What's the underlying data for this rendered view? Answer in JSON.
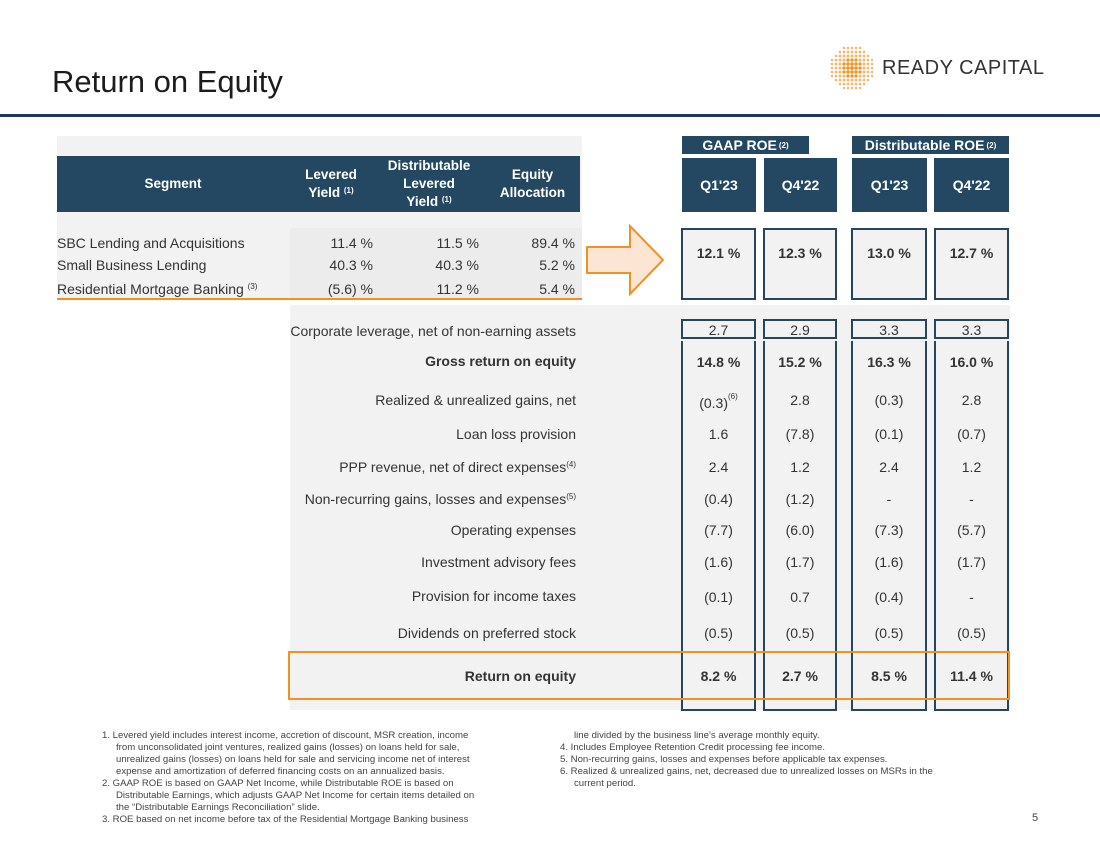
{
  "title": "Return on Equity",
  "logo": {
    "text": "READY CAPITAL",
    "mark": "dotted-globe-mark"
  },
  "segment_table": {
    "headers": {
      "segment": "Segment",
      "levered_yield": [
        "Levered",
        "Yield"
      ],
      "levered_yield_sup": "(1)",
      "distributable_levered_yield": [
        "Distributable",
        "Levered",
        "Yield"
      ],
      "distributable_levered_yield_sup": "(1)",
      "equity_allocation": [
        "Equity",
        "Allocation"
      ]
    },
    "rows": [
      {
        "name": "SBC Lending and Acquisitions",
        "sup": "",
        "levered_yield": "11.4 %",
        "distributable_levered_yield": "11.5 %",
        "equity_allocation": "89.4 %"
      },
      {
        "name": "Small Business Lending",
        "sup": "",
        "levered_yield": "40.3 %",
        "distributable_levered_yield": "40.3 %",
        "equity_allocation": "5.2 %"
      },
      {
        "name": "Residential Mortgage Banking",
        "sup": "(3)",
        "levered_yield": "(5.6) %",
        "distributable_levered_yield": "11.2 %",
        "equity_allocation": "5.4 %"
      }
    ]
  },
  "roe_table": {
    "groups": [
      {
        "label": "GAAP ROE",
        "sup": "(2)",
        "periods": [
          "Q1'23",
          "Q4'22"
        ]
      },
      {
        "label": "Distributable ROE",
        "sup": "(2)",
        "periods": [
          "Q1'23",
          "Q4'22"
        ]
      }
    ],
    "segment_roe": [
      "12.1  %",
      "12.3  %",
      "13.0  %",
      "12.7  %"
    ],
    "rows": [
      {
        "label": "Corporate leverage, net of non-earning assets",
        "sup": "",
        "bold": false,
        "values": [
          "2.7",
          "2.9",
          "3.3",
          "3.3"
        ]
      },
      {
        "label": "Gross return on equity",
        "sup": "",
        "bold": true,
        "values": [
          "14.8 %",
          "15.2 %",
          "16.3 %",
          "16.0 %"
        ]
      },
      {
        "label": "Realized & unrealized gains, net",
        "sup": "",
        "bold": false,
        "values": [
          "(0.3)",
          "2.8",
          "(0.3)",
          "2.8"
        ],
        "value_sups": [
          "(6)",
          "",
          "",
          ""
        ]
      },
      {
        "label": "Loan loss provision",
        "sup": "",
        "bold": false,
        "values": [
          "1.6",
          "(7.8)",
          "(0.1)",
          "(0.7)"
        ]
      },
      {
        "label": "PPP revenue, net of direct expenses",
        "sup": "(4)",
        "bold": false,
        "values": [
          "2.4",
          "1.2",
          "2.4",
          "1.2"
        ]
      },
      {
        "label": "Non-recurring gains, losses and expenses",
        "sup": "(5)",
        "bold": false,
        "values": [
          "(0.4)",
          "(1.2)",
          "-",
          "-"
        ]
      },
      {
        "label": "Operating expenses",
        "sup": "",
        "bold": false,
        "values": [
          "(7.7)",
          "(6.0)",
          "(7.3)",
          "(5.7)"
        ]
      },
      {
        "label": "Investment advisory fees",
        "sup": "",
        "bold": false,
        "values": [
          "(1.6)",
          "(1.7)",
          "(1.6)",
          "(1.7)"
        ]
      },
      {
        "label": "Provision for income taxes",
        "sup": "",
        "bold": false,
        "values": [
          "(0.1)",
          "0.7",
          "(0.4)",
          "-"
        ]
      },
      {
        "label": "Dividends on preferred stock",
        "sup": "",
        "bold": false,
        "values": [
          "(0.5)",
          "(0.5)",
          "(0.5)",
          "(0.5)"
        ]
      },
      {
        "label": "Return on equity",
        "sup": "",
        "bold": true,
        "values": [
          "8.2 %",
          "2.7 %",
          "8.5 %",
          "11.4 %"
        ]
      }
    ]
  },
  "footnotes_left": [
    {
      "text": "1. Levered yield includes interest income, accretion of discount, MSR creation, income",
      "indent": false
    },
    {
      "text": "from unconsolidated joint ventures, realized gains (losses) on loans held for sale,",
      "indent": true
    },
    {
      "text": "unrealized gains (losses) on loans held for sale and servicing income net of interest",
      "indent": true
    },
    {
      "text": "expense and amortization of deferred financing costs on an annualized basis.",
      "indent": true
    },
    {
      "text": "2. GAAP ROE is based on GAAP Net Income, while Distributable ROE is based on",
      "indent": false
    },
    {
      "text": "Distributable Earnings, which adjusts GAAP Net Income for certain items detailed on",
      "indent": true
    },
    {
      "text": "the “Distributable Earnings Reconciliation” slide.",
      "indent": true
    },
    {
      "text": "3. ROE based on net income before tax of the Residential Mortgage Banking business",
      "indent": false
    }
  ],
  "footnotes_right": [
    {
      "text": "line divided by the business line’s average monthly equity.",
      "indent": true
    },
    {
      "text": "4. Includes Employee Retention Credit processing fee income.",
      "indent": false
    },
    {
      "text": "5. Non-recurring gains, losses and expenses before applicable tax expenses.",
      "indent": false
    },
    {
      "text": "6. Realized & unrealized gains, net, decreased due to unrealized losses on MSRs in the",
      "indent": false
    },
    {
      "text": "current period.",
      "indent": false
    }
  ],
  "page_number": "5",
  "colors": {
    "navy": "#244861",
    "box_border": "#27465c",
    "orange": "#f29121",
    "arrow_fill": "#fde5d4",
    "rule": "#1f3a5a"
  }
}
